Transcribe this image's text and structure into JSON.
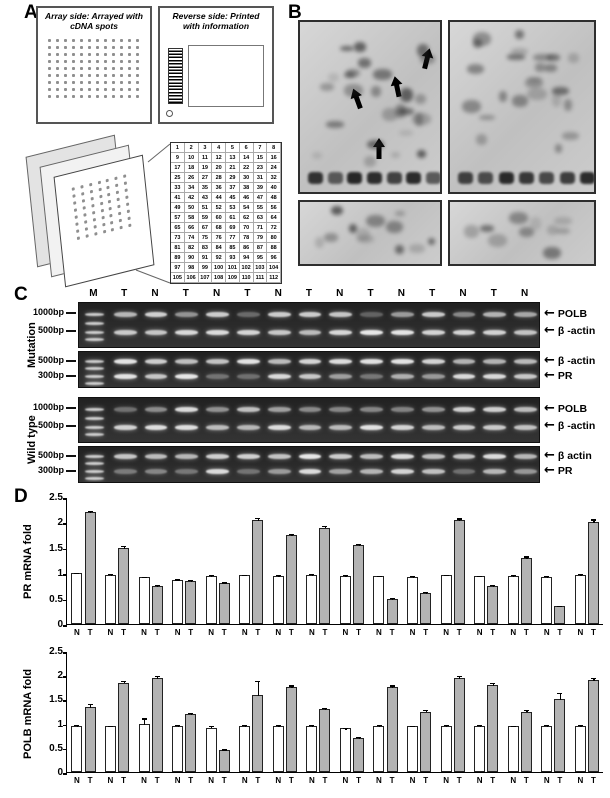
{
  "panels": {
    "a": "A",
    "b": "B",
    "c": "C",
    "d": "D"
  },
  "icons": {
    "arrow_left": "←"
  },
  "panel_a": {
    "array_slide_title": "Array side: Arrayed with cDNA spots",
    "reverse_slide_title": "Reverse side: Printed with information",
    "grid_numbers": [
      1,
      2,
      3,
      4,
      5,
      6,
      7,
      8,
      9,
      10,
      11,
      12,
      13,
      14,
      15,
      16,
      17,
      18,
      19,
      20,
      21,
      22,
      23,
      24,
      25,
      26,
      27,
      28,
      29,
      30,
      31,
      32,
      33,
      34,
      35,
      36,
      37,
      38,
      39,
      40,
      41,
      42,
      43,
      44,
      45,
      46,
      47,
      48,
      49,
      50,
      51,
      52,
      53,
      54,
      55,
      56,
      57,
      58,
      59,
      60,
      61,
      62,
      63,
      64,
      65,
      66,
      67,
      68,
      69,
      70,
      71,
      72,
      73,
      74,
      75,
      76,
      77,
      78,
      79,
      80,
      81,
      82,
      83,
      84,
      85,
      86,
      87,
      88,
      89,
      90,
      91,
      92,
      93,
      94,
      95,
      96,
      97,
      98,
      99,
      100,
      101,
      102,
      103,
      104,
      105,
      106,
      107,
      108,
      109,
      110,
      111,
      112
    ]
  },
  "panel_c": {
    "lane_labels": [
      "M",
      "T",
      "N",
      "T",
      "N",
      "T",
      "N",
      "T",
      "N",
      "T",
      "N",
      "T",
      "N",
      "T",
      "N"
    ],
    "group_labels": [
      "Mutation",
      "Wild type"
    ],
    "markers": {
      "gel1": [
        "1000bp",
        "500bp"
      ],
      "gel2": [
        "500bp",
        "300bp"
      ],
      "gel3": [
        "1000bp",
        "500bp"
      ],
      "gel4": [
        "500bp",
        "300bp"
      ]
    },
    "right_labels": {
      "gel1": [
        "POLB",
        "β -actin"
      ],
      "gel2": [
        "β -actin",
        "PR"
      ],
      "gel3": [
        "POLB",
        "β -actin"
      ],
      "gel4": [
        "β actin",
        "PR"
      ]
    }
  },
  "chart_data": [
    {
      "type": "bar",
      "ylabel": "PR mRNA fold",
      "ylim": [
        0,
        2.5
      ],
      "yticks": [
        0,
        0.5,
        1,
        1.5,
        2,
        2.5
      ],
      "pair_labels": [
        "N",
        "T"
      ],
      "legend": "paired normal (N, white) vs tumor (T, gray) samples",
      "series": [
        {
          "name": "N",
          "color": "#ffffff",
          "values": [
            1.0,
            0.97,
            0.92,
            0.87,
            0.95,
            0.96,
            0.95,
            0.97,
            0.95,
            0.94,
            0.93,
            0.96,
            0.94,
            0.95,
            0.93,
            0.97
          ],
          "errors": [
            0.03,
            0.03,
            0.03,
            0.03,
            0.03,
            0.03,
            0.03,
            0.03,
            0.03,
            0.03,
            0.03,
            0.03,
            0.03,
            0.03,
            0.03,
            0.03
          ]
        },
        {
          "name": "T",
          "color": "#b3b3b3",
          "values": [
            2.2,
            1.5,
            0.75,
            0.85,
            0.8,
            2.05,
            1.75,
            1.9,
            1.55,
            0.5,
            0.62,
            2.05,
            0.75,
            1.3,
            0.35,
            2.0
          ],
          "errors": [
            0.05,
            0.06,
            0.04,
            0.04,
            0.04,
            0.06,
            0.05,
            0.05,
            0.05,
            0.03,
            0.04,
            0.05,
            0.04,
            0.05,
            0.03,
            0.08
          ]
        }
      ]
    },
    {
      "type": "bar",
      "ylabel": "POLB mRNA fold",
      "ylim": [
        0,
        2.5
      ],
      "yticks": [
        0,
        0.5,
        1,
        1.5,
        2,
        2.5
      ],
      "pair_labels": [
        "N",
        "T"
      ],
      "legend": "paired normal (N, white) vs tumor (T, gray) samples",
      "series": [
        {
          "name": "N",
          "color": "#ffffff",
          "values": [
            0.95,
            0.95,
            1.0,
            0.95,
            0.92,
            0.95,
            0.95,
            0.95,
            0.9,
            0.95,
            0.95,
            0.95,
            0.95,
            0.95,
            0.95,
            0.95
          ],
          "errors": [
            0.04,
            0.03,
            0.13,
            0.04,
            0.05,
            0.04,
            0.04,
            0.04,
            0.03,
            0.04,
            0.03,
            0.04,
            0.04,
            0.03,
            0.05,
            0.04
          ]
        },
        {
          "name": "T",
          "color": "#b3b3b3",
          "values": [
            1.35,
            1.85,
            1.95,
            1.2,
            0.45,
            1.6,
            1.75,
            1.3,
            0.7,
            1.75,
            1.25,
            1.95,
            1.8,
            1.25,
            1.5,
            1.9
          ],
          "errors": [
            0.08,
            0.05,
            0.06,
            0.05,
            0.04,
            0.3,
            0.06,
            0.05,
            0.04,
            0.06,
            0.05,
            0.05,
            0.06,
            0.05,
            0.15,
            0.06
          ]
        }
      ]
    }
  ]
}
